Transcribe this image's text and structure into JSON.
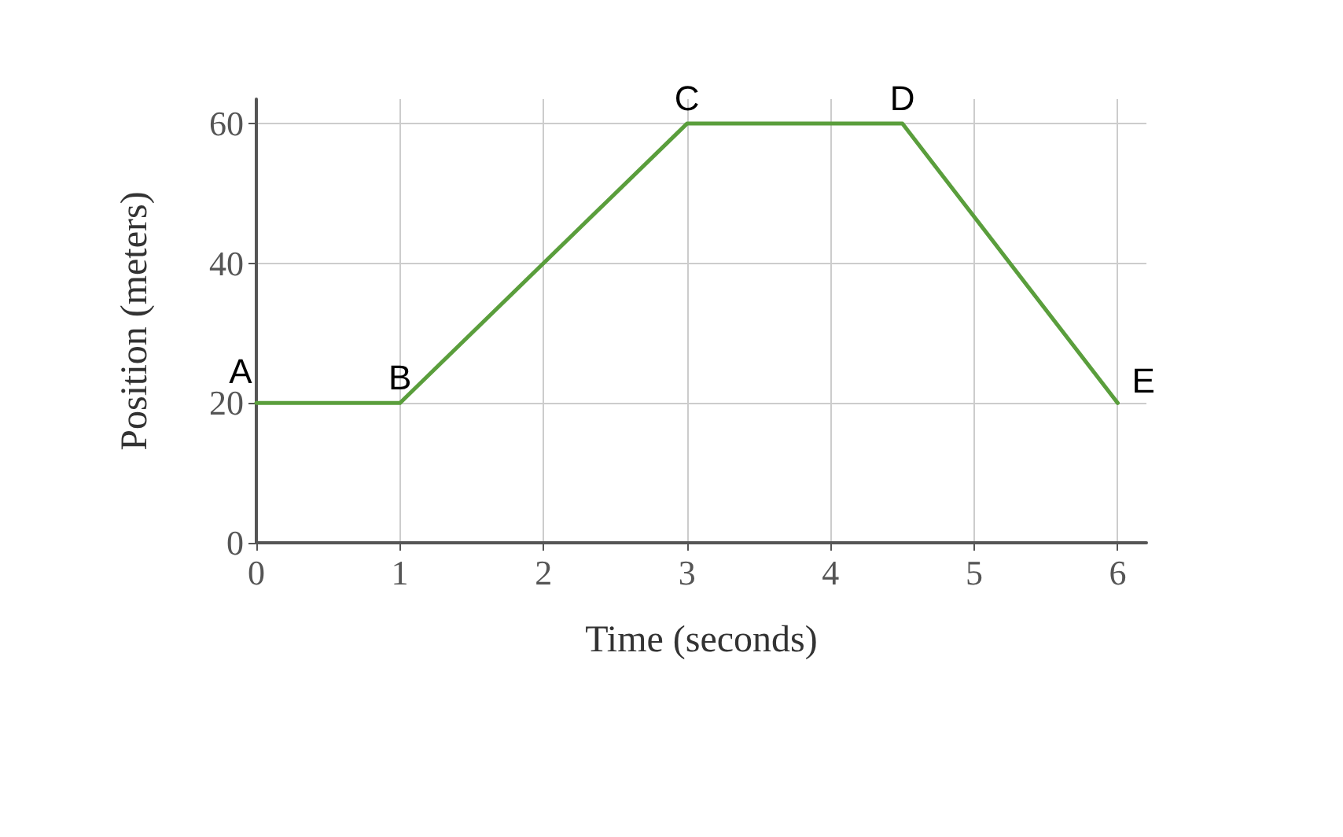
{
  "chart_data": {
    "type": "line",
    "xlabel": "Time (seconds)",
    "ylabel": "Position (meters)",
    "x": [
      0,
      1,
      3,
      4.5,
      6
    ],
    "series": [
      {
        "color": "#5a9e3c",
        "values": [
          20,
          20,
          60,
          60,
          20
        ]
      }
    ],
    "xlim": [
      0,
      6.2
    ],
    "ylim": [
      0,
      63.5
    ],
    "xticks": [
      0,
      1,
      2,
      3,
      4,
      5,
      6
    ],
    "yticks": [
      0,
      20,
      40,
      60
    ],
    "grid": true,
    "marker": "none",
    "line_style": "solid",
    "annotations": [
      {
        "text": "A",
        "x": 0,
        "y": 20
      },
      {
        "text": "B",
        "x": 1,
        "y": 20
      },
      {
        "text": "C",
        "x": 3,
        "y": 60
      },
      {
        "text": "D",
        "x": 4.5,
        "y": 60
      },
      {
        "text": "E",
        "x": 6,
        "y": 20
      }
    ]
  }
}
